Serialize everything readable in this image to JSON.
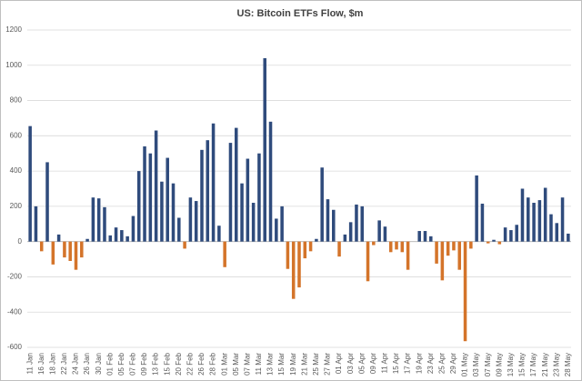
{
  "chart_data": {
    "type": "bar",
    "title": "US: Bitcoin ETFs Flow, $m",
    "categories": [
      "11 Jan",
      null,
      "16 Jan",
      null,
      "18 Jan",
      null,
      "22 Jan",
      null,
      "24 Jan",
      null,
      "26 Jan",
      null,
      "30 Jan",
      null,
      "01 Feb",
      null,
      "05 Feb",
      null,
      "07 Feb",
      null,
      "09 Feb",
      null,
      "13 Feb",
      null,
      "15 Feb",
      null,
      "20 Feb",
      null,
      "22 Feb",
      null,
      "26 Feb",
      null,
      "28 Feb",
      null,
      "01 Mar",
      null,
      "05 Mar",
      null,
      "07 Mar",
      null,
      "11 Mar",
      null,
      "13 Mar",
      null,
      "15 Mar",
      null,
      "19 Mar",
      null,
      "21 Mar",
      null,
      "25 Mar",
      null,
      "27 Mar",
      null,
      "01 Apr",
      null,
      "03 Apr",
      null,
      "05 Apr",
      null,
      "09 Apr",
      null,
      "11 Apr",
      null,
      "15 Apr",
      null,
      "17 Apr",
      null,
      "19 Apr",
      null,
      "23 Apr",
      null,
      "25 Apr",
      null,
      "29 Apr",
      null,
      "01 May",
      null,
      "03 May",
      null,
      "07 May",
      null,
      "09 May",
      null,
      "13 May",
      null,
      "15 May",
      null,
      "17 May",
      null,
      "21 May",
      null,
      "23 May",
      null,
      "28 May"
    ],
    "values": [
      655,
      200,
      -55,
      450,
      -130,
      40,
      -90,
      -110,
      -160,
      -90,
      15,
      250,
      245,
      195,
      35,
      80,
      65,
      30,
      145,
      400,
      540,
      500,
      630,
      340,
      475,
      330,
      135,
      -40,
      250,
      230,
      520,
      575,
      670,
      90,
      -145,
      560,
      645,
      330,
      470,
      220,
      500,
      1040,
      680,
      130,
      200,
      -155,
      -325,
      -260,
      -95,
      -55,
      15,
      420,
      240,
      180,
      -85,
      40,
      110,
      210,
      200,
      -225,
      -20,
      120,
      85,
      -60,
      -45,
      -60,
      -160,
      0,
      60,
      60,
      30,
      -125,
      -220,
      -80,
      -50,
      -160,
      -565,
      -40,
      375,
      215,
      -10,
      10,
      -15,
      80,
      65,
      95,
      300,
      250,
      220,
      235,
      305,
      155,
      105,
      250,
      45
    ],
    "color": "#2f4b7c",
    "negative_color": "#d4742a",
    "ylim": [
      -600,
      1200
    ],
    "yticks": [
      -600,
      -400,
      -200,
      0,
      200,
      400,
      600,
      800,
      1000,
      1200
    ],
    "grid": true
  }
}
